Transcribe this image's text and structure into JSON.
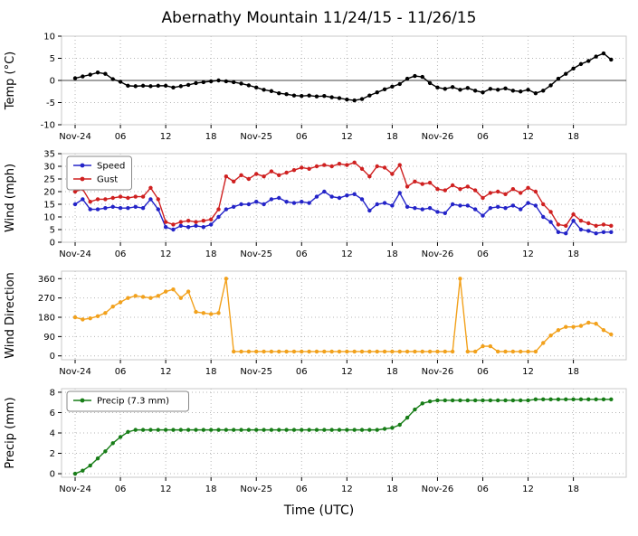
{
  "title": "Abernathy Mountain 11/24/15 - 11/26/15",
  "xlabel": "Time (UTC)",
  "x_axis": {
    "unit": "hours since Nov-24 00:00 UTC",
    "range": [
      0,
      71
    ],
    "xlim": [
      -1.8,
      73
    ],
    "tick_positions": [
      0,
      6,
      12,
      18,
      24,
      30,
      36,
      42,
      48,
      54,
      60,
      66
    ],
    "tick_labels": [
      "Nov-24",
      "06",
      "12",
      "18",
      "Nov-25",
      "06",
      "12",
      "18",
      "Nov-26",
      "06",
      "12",
      "18"
    ]
  },
  "chart_data": [
    {
      "type": "line",
      "name": "temp",
      "ylabel": "Temp (°C)",
      "ylim": [
        -10,
        10
      ],
      "yticks": [
        -10,
        -5,
        0,
        5,
        10
      ],
      "baseline": 0,
      "grid": true,
      "series": [
        {
          "name": "Temp",
          "color": "#000000",
          "values": [
            0.5,
            0.9,
            1.3,
            1.8,
            1.5,
            0.3,
            -0.3,
            -1.2,
            -1.3,
            -1.2,
            -1.3,
            -1.2,
            -1.2,
            -1.6,
            -1.3,
            -1.0,
            -0.6,
            -0.4,
            -0.2,
            0.0,
            -0.2,
            -0.4,
            -0.7,
            -1.1,
            -1.6,
            -2.1,
            -2.4,
            -2.9,
            -3.1,
            -3.4,
            -3.5,
            -3.4,
            -3.6,
            -3.5,
            -3.8,
            -4.0,
            -4.3,
            -4.5,
            -4.2,
            -3.4,
            -2.7,
            -2.0,
            -1.4,
            -0.8,
            0.4,
            1.0,
            0.8,
            -0.6,
            -1.6,
            -1.9,
            -1.5,
            -2.1,
            -1.7,
            -2.3,
            -2.7,
            -1.9,
            -2.1,
            -1.8,
            -2.3,
            -2.5,
            -2.1,
            -2.9,
            -2.3,
            -1.1,
            0.4,
            1.5,
            2.7,
            3.7,
            4.4,
            5.4,
            6.1,
            4.7
          ]
        }
      ]
    },
    {
      "type": "line",
      "name": "wind",
      "ylabel": "Wind (mph)",
      "ylim": [
        0,
        35
      ],
      "yticks": [
        0,
        5,
        10,
        15,
        20,
        25,
        30,
        35
      ],
      "grid": true,
      "legend": true,
      "series": [
        {
          "name": "Speed",
          "color": "#2323c8",
          "values": [
            15,
            17,
            13,
            13,
            13.5,
            14,
            13.5,
            13.5,
            14,
            13.5,
            17,
            13,
            6,
            5,
            6.5,
            6,
            6.5,
            6,
            7,
            10,
            13,
            14,
            15,
            15,
            16,
            15,
            17,
            17.5,
            16,
            15.5,
            16,
            15.5,
            18,
            20,
            18,
            17.5,
            18.5,
            19,
            17,
            12.5,
            15,
            15.5,
            14.5,
            19.5,
            14,
            13.5,
            13,
            13.5,
            12,
            11.5,
            15,
            14.5,
            14.5,
            13,
            10.5,
            13.5,
            14,
            13.5,
            14.5,
            13,
            15.5,
            14.5,
            10,
            8,
            4,
            3.5,
            8.5,
            5,
            4.5,
            3.5,
            4,
            4
          ]
        },
        {
          "name": "Gust",
          "color": "#cf2020",
          "values": [
            20,
            21,
            16,
            17,
            17,
            17.5,
            18,
            17.5,
            18,
            18,
            21.5,
            17,
            8,
            7,
            8,
            8.5,
            8,
            8.5,
            9,
            13,
            26,
            24,
            26.5,
            25,
            27,
            26,
            28,
            26.5,
            27.5,
            28.5,
            29.5,
            29,
            30,
            30.5,
            30,
            31,
            30.5,
            31.5,
            29,
            26,
            30,
            29.5,
            27,
            30.5,
            22,
            24,
            23,
            23.5,
            21,
            20.5,
            22.5,
            21,
            22,
            20.5,
            17.5,
            19.5,
            20,
            19,
            21,
            19.5,
            21.5,
            20,
            15,
            12,
            7,
            6.5,
            11,
            8.5,
            7.5,
            6.5,
            7,
            6.5
          ]
        }
      ]
    },
    {
      "type": "line",
      "name": "wind-direction",
      "ylabel": "Wind Direction",
      "ylim": [
        -18,
        395
      ],
      "yticks": [
        0,
        90,
        180,
        270,
        360
      ],
      "grid": true,
      "series": [
        {
          "name": "Direction",
          "color": "#f2a11c",
          "values": [
            180,
            170,
            175,
            185,
            200,
            230,
            250,
            270,
            280,
            275,
            270,
            280,
            300,
            310,
            270,
            300,
            205,
            200,
            195,
            200,
            360,
            20,
            20,
            20,
            20,
            20,
            20,
            20,
            20,
            20,
            20,
            20,
            20,
            20,
            20,
            20,
            20,
            20,
            20,
            20,
            20,
            20,
            20,
            20,
            20,
            20,
            20,
            20,
            20,
            20,
            20,
            360,
            20,
            20,
            45,
            45,
            20,
            20,
            20,
            20,
            20,
            20,
            60,
            95,
            120,
            135,
            135,
            140,
            155,
            150,
            120,
            100
          ]
        }
      ]
    },
    {
      "type": "line",
      "name": "precip",
      "ylabel": "Precip (mm)",
      "ylim": [
        -0.35,
        8.35
      ],
      "yticks": [
        0,
        2,
        4,
        6,
        8
      ],
      "grid": true,
      "legend": true,
      "series": [
        {
          "name": "Precip (7.3 mm)",
          "color": "#177d17",
          "values": [
            0,
            0.3,
            0.8,
            1.5,
            2.2,
            3.0,
            3.6,
            4.1,
            4.3,
            4.3,
            4.3,
            4.3,
            4.3,
            4.3,
            4.3,
            4.3,
            4.3,
            4.3,
            4.3,
            4.3,
            4.3,
            4.3,
            4.3,
            4.3,
            4.3,
            4.3,
            4.3,
            4.3,
            4.3,
            4.3,
            4.3,
            4.3,
            4.3,
            4.3,
            4.3,
            4.3,
            4.3,
            4.3,
            4.3,
            4.3,
            4.3,
            4.4,
            4.5,
            4.8,
            5.5,
            6.3,
            6.9,
            7.1,
            7.2,
            7.2,
            7.2,
            7.2,
            7.2,
            7.2,
            7.2,
            7.2,
            7.2,
            7.2,
            7.2,
            7.2,
            7.2,
            7.3,
            7.3,
            7.3,
            7.3,
            7.3,
            7.3,
            7.3,
            7.3,
            7.3,
            7.3,
            7.3
          ]
        }
      ]
    }
  ]
}
